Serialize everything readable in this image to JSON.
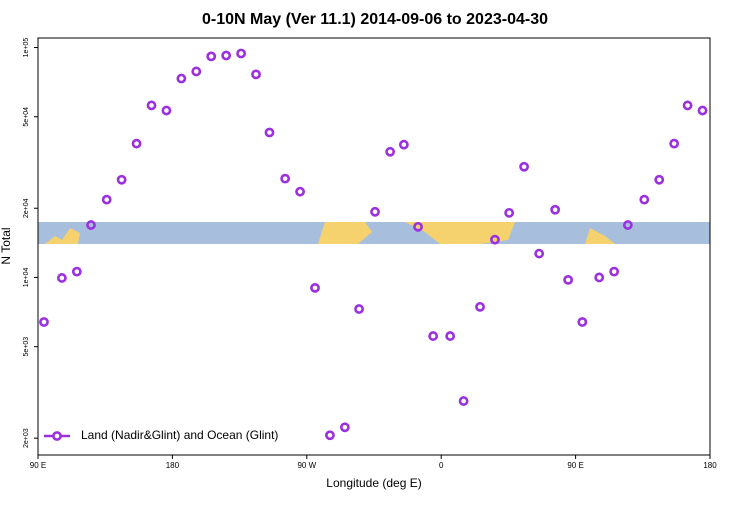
{
  "chart_data": {
    "type": "scatter",
    "title": "0-10N May (Ver 11.1)   2014-09-06 to 2023-04-30",
    "x_label": "Longitude (deg E)",
    "y_label": "N Total",
    "xlim": [
      90,
      540
    ],
    "ylim": [
      1690,
      110000
    ],
    "log_y": true,
    "xticks": [
      {
        "value": 90,
        "label": "90 E"
      },
      180,
      {
        "value": 270,
        "label": "90 W"
      },
      {
        "value": 360,
        "label": "0"
      },
      {
        "value": 450,
        "label": "90 E"
      },
      {
        "value": 540,
        "label": "180"
      }
    ],
    "yticks": [
      {
        "value": 2000,
        "label": "2e+03"
      },
      {
        "value": 5000,
        "label": "5e+03"
      },
      {
        "value": 10000,
        "label": "1e+04"
      },
      {
        "value": 20000,
        "label": "2e+04"
      },
      {
        "value": 50000,
        "label": "5e+04"
      },
      {
        "value": 100000,
        "label": "1e+05"
      }
    ],
    "legend_position": "lower left",
    "series": [
      {
        "name": "Land (Nadir&Glint) and Ocean (Glint)",
        "color": "#9b30e0",
        "x": [
          94,
          106,
          116,
          125.5,
          136,
          146,
          156,
          166,
          176,
          186,
          196,
          206,
          216,
          226,
          236,
          245,
          255.5,
          265.5,
          275.5,
          285.5,
          295.5,
          305,
          315.7,
          325.8,
          335,
          344.5,
          354.6,
          366,
          375,
          386,
          396,
          405.5,
          415.5,
          425.6,
          436.3,
          445,
          454.5,
          465.8,
          475.8,
          485,
          496,
          506,
          516,
          525,
          535
        ],
        "values": [
          6400,
          9950,
          10600,
          16900,
          21800,
          26600,
          38200,
          56000,
          53200,
          73300,
          78700,
          91500,
          92300,
          94200,
          76400,
          42700,
          26900,
          23600,
          9010,
          2060,
          2230,
          7290,
          19300,
          35200,
          37800,
          16600,
          5560,
          5560,
          2900,
          7450,
          14600,
          19100,
          30300,
          12700,
          19700,
          9760,
          6400,
          10000,
          10600,
          16900,
          21800,
          26600,
          38200,
          56000,
          53200
        ]
      }
    ]
  }
}
